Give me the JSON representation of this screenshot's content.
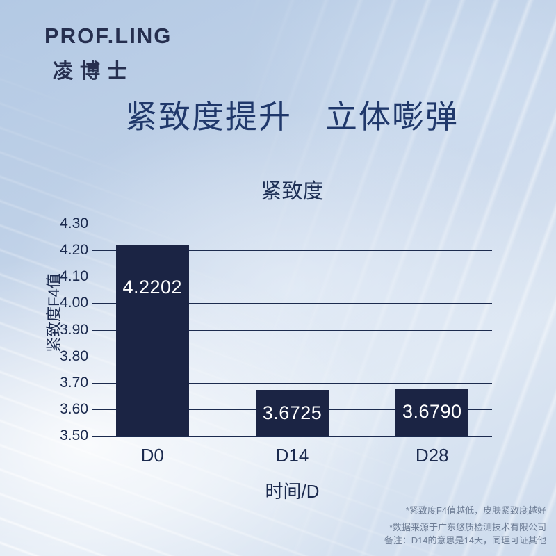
{
  "brand": {
    "logo_en": "PROF.LING",
    "logo_cn": "凌博士"
  },
  "page_title": "紧致度提升　立体嘭弹",
  "chart_data": {
    "type": "bar",
    "title": "紧致度",
    "categories": [
      "D0",
      "D14",
      "D28"
    ],
    "values": [
      4.2202,
      3.6725,
      3.679
    ],
    "value_labels": [
      "4.2202",
      "3.6725",
      "3.6790"
    ],
    "value_label_placement": [
      "upper",
      "center",
      "center"
    ],
    "xlabel": "时间/D",
    "ylabel": "紧致度F4值",
    "ylim": [
      3.5,
      4.3
    ],
    "yticks": [
      "4.30",
      "4.20",
      "4.10",
      "4.00",
      "3.90",
      "3.80",
      "3.70",
      "3.60",
      "3.50"
    ],
    "grid": "horizontal",
    "legend": "none",
    "bar_centers_pct": [
      15,
      50,
      85
    ],
    "bar_width_pct": 18.3,
    "bar_color": "#1b2444",
    "value_label_color": "#ffffff"
  },
  "footnotes": [
    "*紧致度F4值越低，皮肤紧致度越好",
    "*数据来源于广东悠质检测技术有限公司",
    "备注：D14的意思是14天，同理可证其他"
  ]
}
